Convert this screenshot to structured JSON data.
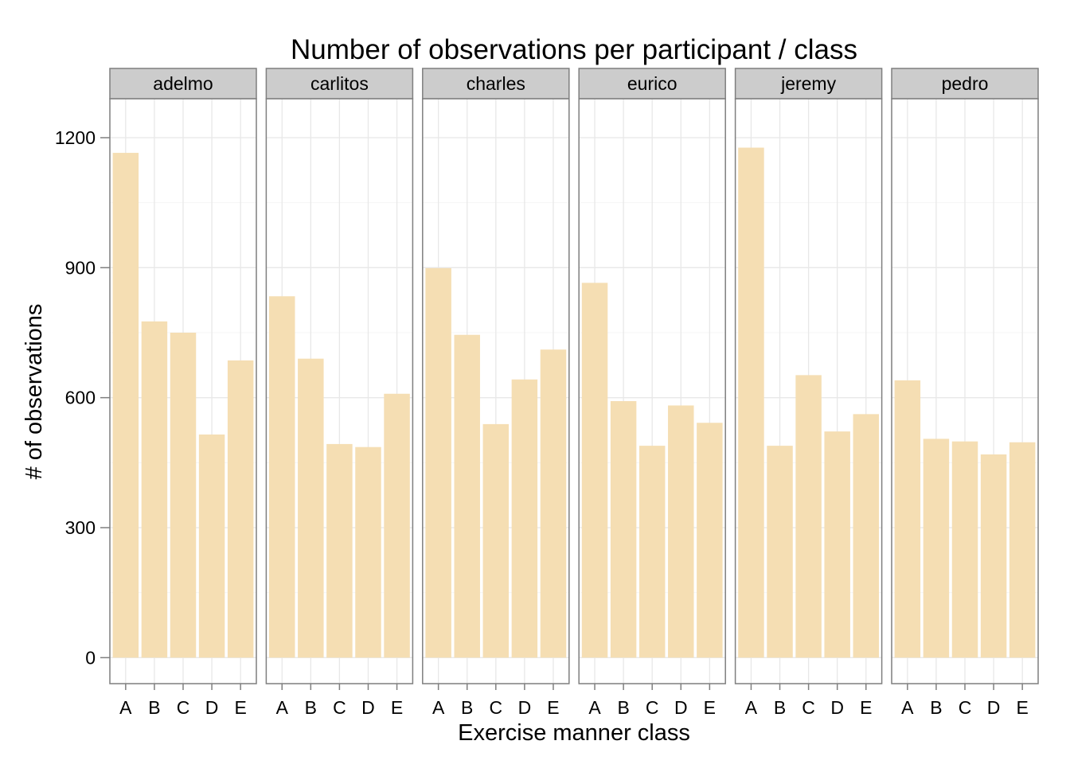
{
  "chart_data": {
    "type": "bar",
    "title": "Number of observations per participant / class",
    "xlabel": "Exercise manner class",
    "ylabel": "# of observations",
    "ylim": [
      -60,
      1290
    ],
    "yticks": [
      0,
      300,
      600,
      900,
      1200
    ],
    "grid": true,
    "legend": "none",
    "categories": [
      "A",
      "B",
      "C",
      "D",
      "E"
    ],
    "facets": [
      {
        "name": "adelmo",
        "values": [
          1165,
          776,
          750,
          515,
          686
        ]
      },
      {
        "name": "carlitos",
        "values": [
          834,
          690,
          493,
          486,
          609
        ]
      },
      {
        "name": "charles",
        "values": [
          899,
          745,
          539,
          642,
          711
        ]
      },
      {
        "name": "eurico",
        "values": [
          865,
          592,
          489,
          582,
          542
        ]
      },
      {
        "name": "jeremy",
        "values": [
          1177,
          489,
          652,
          522,
          562
        ]
      },
      {
        "name": "pedro",
        "values": [
          640,
          505,
          499,
          469,
          497
        ]
      }
    ],
    "colors": {
      "bar": "#f5deb3",
      "strip": "#cccccc",
      "panel_border": "#7f7f7f",
      "grid_major": "#e8e8e8",
      "grid_minor": "#f5f5f5"
    }
  }
}
